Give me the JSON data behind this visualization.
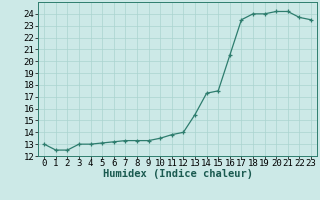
{
  "x": [
    0,
    1,
    2,
    3,
    4,
    5,
    6,
    7,
    8,
    9,
    10,
    11,
    12,
    13,
    14,
    15,
    16,
    17,
    18,
    19,
    20,
    21,
    22,
    23
  ],
  "y": [
    13.0,
    12.5,
    12.5,
    13.0,
    13.0,
    13.1,
    13.2,
    13.3,
    13.3,
    13.3,
    13.5,
    13.8,
    14.0,
    15.5,
    17.3,
    17.5,
    20.5,
    23.5,
    24.0,
    24.0,
    24.2,
    24.2,
    23.7,
    23.5
  ],
  "xlabel": "Humidex (Indice chaleur)",
  "ylim": [
    12,
    25
  ],
  "xlim": [
    -0.5,
    23.5
  ],
  "yticks": [
    12,
    13,
    14,
    15,
    16,
    17,
    18,
    19,
    20,
    21,
    22,
    23,
    24
  ],
  "xticks": [
    0,
    1,
    2,
    3,
    4,
    5,
    6,
    7,
    8,
    9,
    10,
    11,
    12,
    13,
    14,
    15,
    16,
    17,
    18,
    19,
    20,
    21,
    22,
    23
  ],
  "line_color": "#2e7d6e",
  "marker_color": "#2e7d6e",
  "bg_color": "#cce9e7",
  "grid_color": "#aad4d0",
  "tick_fontsize": 6.5,
  "label_fontsize": 7.5
}
